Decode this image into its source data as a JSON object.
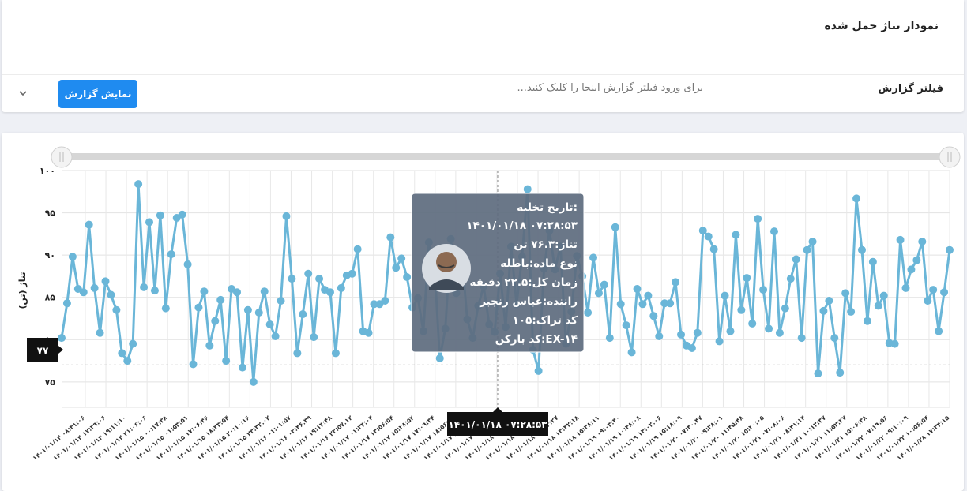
{
  "page_title": "نمودار تناژ حمل شده",
  "filter": {
    "label": "فیلتر گزارش",
    "hint": "برای ورود فیلتر گزارش اینجا را کلیک کنید...",
    "button": "نمایش گزارش"
  },
  "tooltip": {
    "lines": [
      "تاریخ تخلیه:",
      "۱۴۰۱/۰۱/۱۸ ۰۷:۲۸:۵۳",
      "تناژ:۷۶.۳ تن",
      "نوع ماده:باطله",
      "زمان کل:۲۲.۵ دقیقه",
      "راننده:عباس رنجبر",
      "کد تراک:۱۰۵",
      "کد بارکن:EX-۱۴"
    ]
  },
  "crosshair": {
    "y_label": "۷۷",
    "x_label": "۱۴۰۱/۰۱/۱۸ ۰۷:۲۸:۵۳"
  },
  "chart_data": {
    "type": "line",
    "ylabel": "(تناژ (تن",
    "ylim": [
      72,
      100
    ],
    "y_ticks": [
      "۷۵",
      "۸۰",
      "۸۵",
      "۹۰",
      "۹۵",
      "۱۰۰"
    ],
    "y_tick_values": [
      75,
      80,
      85,
      90,
      95,
      100
    ],
    "x_tick_labels": [
      "۱۴۰۱/۰۱/۱۴ ۰۸:۴۱:۰۶",
      "۱۴۰۱/۰۱/۱۴ ۱۷:۳۹:۰۶",
      "۱۴۰۱/۰۱/۱۴ ۱۹:۱۱:۱۰",
      "۱۴۰۱/۰۱/۱۴ ۲۱:۰۶:۰۶",
      "۱۴۰۱/۰۱/۱۵ ۰۰:۱۷:۳۸",
      "۱۴۰۱/۰۱/۱۵ ۰۱:۵۳:۵۱",
      "۱۴۰۱/۰۱/۱۵ ۱۷:۰۶:۴۶",
      "۱۴۰۱/۰۱/۱۵ ۱۸:۳۳:۵۴",
      "۱۴۰۱/۰۱/۱۵ ۲۰:۱۰:۱۶",
      "۱۴۰۱/۰۱/۱۵ ۲۳:۳۲:۰۲",
      "۱۴۰۱/۰۱/۱۶ ۰۱:۰۱:۵۷",
      "۱۴۰۱/۰۱/۱۶ ۰۲:۴۶:۳۹",
      "۱۴۰۱/۰۱/۱۶ ۱۹:۱۳:۴۸",
      "۱۴۰۱/۰۱/۱۶ ۲۲:۵۷:۱۲",
      "۱۴۰۱/۰۱/۱۷ ۰۱:۳۳:۰۴",
      "۱۴۰۱/۰۱/۱۷ ۱۳:۵۶:۵۴",
      "۱۴۰۱/۰۱/۱۷ ۱۵:۲۸:۵۲",
      "۱۴۰۱/۰۱/۱۷ ۱۷:۰۹:۳۴",
      "۱۴۰۱/۰۱/۱۷ ۱۸:۵۶:۰۵",
      "۱۴۰۱/۰۱/۱۷ ۲۰:۳۰:۱۲",
      "۱۴۰۱/۰۱/۱۷ ۲۲:۰۴:۴۴",
      "۱۴۰۱/۰۱/۱۸ ۰۰:۳۴:۲۹",
      "۱۴۰۱/۰۱/۱۸ ۰۷:۲۸:۵۳",
      "۱۴۰۱/۰۱/۱۸ ۰۹:۲۳:۲۷",
      "۱۴۰۱/۰۱/۱۸ ۱۳:۴۲:۱۸",
      "۱۴۰۱/۰۱/۱۸ ۱۵:۳۸:۱۱",
      "۱۴۰۱/۰۱/۱۹ ۰۹:۰۳:۴۰",
      "۱۴۰۱/۰۱/۱۹ ۱۰:۴۸:۰۸",
      "۱۴۰۱/۰۱/۱۹ ۱۴:۰۲:۰۶",
      "۱۴۰۱/۰۱/۱۹ ۱۵:۱۸:۰۹",
      "۱۴۰۱/۰۱/۲۰ ۰۷:۴۰:۴۷",
      "۱۴۰۱/۰۱/۲۰ ۰۹:۳۸:۰۱",
      "۱۴۰۱/۰۱/۲۰ ۱۱:۴۵:۴۸",
      "۱۴۰۱/۰۱/۲۰ ۱۵:۲۰:۰۵",
      "۱۴۰۱/۰۱/۲۱ ۰۷:۰۸:۰۶",
      "۱۴۰۱/۰۱/۲۱ ۰۸:۴۱:۱۴",
      "۱۴۰۱/۰۱/۲۱ ۱۰:۱۳:۳۷",
      "۱۴۰۱/۰۱/۲۱ ۱۱:۵۲:۲۷",
      "۱۴۰۱/۰۱/۲۱ ۱۵:۰۶:۳۸",
      "۱۴۰۱/۰۱/۲۲ ۰۷:۱۹:۵۶",
      "۱۴۰۱/۰۱/۲۲ ۰۹:۱۰:۰۹",
      "۱۴۰۱/۰۱/۲۲ ۱۰:۵۶:۵۴",
      "۱۴۰۱/۰۱/۲۸ ۱۷:۳۴:۱۵"
    ],
    "values": [
      80.2,
      84.3,
      89.8,
      86,
      85.6,
      93.6,
      86.1,
      80.8,
      86.9,
      85.3,
      83.5,
      78.4,
      77.5,
      79.5,
      98.4,
      86.2,
      93.9,
      85.8,
      94.7,
      83.7,
      90.1,
      94.4,
      94.8,
      88.9,
      77.1,
      83.8,
      85.7,
      79.3,
      82.2,
      84.7,
      77.5,
      86,
      85.6,
      76.7,
      83.5,
      75,
      83.2,
      85.7,
      81.8,
      80.4,
      84.6,
      94.6,
      87.2,
      78.4,
      83,
      87.8,
      80.3,
      87.2,
      85.9,
      85.6,
      78.4,
      86.1,
      87.6,
      87.8,
      90.7,
      81,
      80.8,
      84.2,
      84.2,
      84.6,
      92.1,
      88.5,
      89.6,
      87.4,
      83.8,
      84.9,
      81,
      91.5,
      88.9,
      77.8,
      81.3,
      91.9,
      85.5,
      90,
      82.4,
      80.2,
      84,
      86.3,
      81.8,
      80.9,
      87.8,
      81.5,
      91,
      84.2,
      89.8,
      97.8,
      78.8,
      76.3,
      88.4,
      92.9,
      88.3,
      91,
      79.5,
      83.3,
      89.9,
      87.5,
      83.2,
      89.7,
      85.5,
      86.5,
      80.2,
      93.3,
      84.2,
      81.7,
      78.5,
      86,
      84.2,
      85.2,
      82.8,
      80.4,
      84.3,
      84.3,
      86.8,
      80.6,
      79.3,
      79,
      80.8,
      92.9,
      92.2,
      90.7,
      79.8,
      85.2,
      81,
      92.4,
      83.5,
      87.3,
      81.9,
      94.3,
      85.9,
      81.3,
      92.8,
      80.8,
      83.7,
      87.2,
      89.5,
      80.2,
      90.6,
      91.6,
      76,
      83.4,
      84.6,
      80.2,
      76.1,
      85.5,
      83.3,
      96.7,
      90.6,
      82.2,
      89.2,
      84,
      85.2,
      79.6,
      79.5,
      91.8,
      86.1,
      88.3,
      89.4,
      91.6,
      84.6,
      85.9,
      81,
      85.6,
      90.6
    ]
  },
  "colors": {
    "line": "#6ab6d8",
    "tooltip_bg": "#5d6b7e",
    "button": "#1f8bf0"
  }
}
